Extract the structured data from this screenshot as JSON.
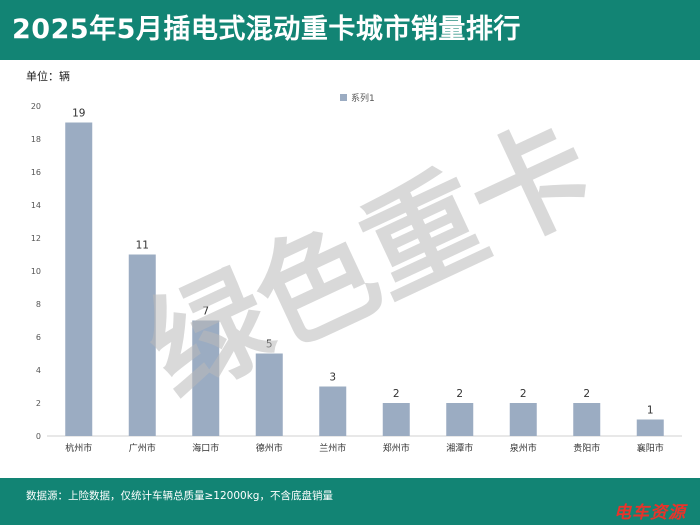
{
  "header": {
    "title": "2025年5月插电式混动重卡城市销量排行"
  },
  "unit_label": "单位：辆",
  "watermark": "绿色重卡",
  "footer": {
    "source_note": "数据源：上险数据，仅统计车辆总质量≥12000kg，不含底盘销量",
    "brand": "电车资源"
  },
  "colors": {
    "header_bg": "#128474",
    "bar": "#9bacc2",
    "brand": "#e8332a"
  },
  "chart_data": {
    "type": "bar",
    "categories": [
      "杭州市",
      "广州市",
      "海口市",
      "德州市",
      "兰州市",
      "郑州市",
      "湘潭市",
      "泉州市",
      "贵阳市",
      "襄阳市"
    ],
    "series": [
      {
        "name": "系列1",
        "values": [
          19,
          11,
          7,
          5,
          3,
          2,
          2,
          2,
          2,
          1
        ]
      }
    ],
    "ylim": [
      0,
      20
    ],
    "yticks": [
      0,
      2,
      4,
      6,
      8,
      10,
      12,
      14,
      16,
      18,
      20
    ],
    "data_labels": true,
    "grid": false,
    "legend_position": "top-center"
  }
}
